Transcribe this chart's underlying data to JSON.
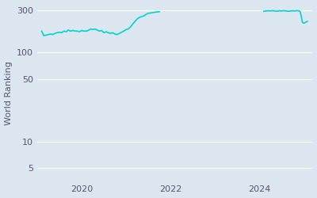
{
  "ylabel": "World Ranking",
  "line_color": "#00d4c8",
  "background_color": "#dce6f0",
  "fig_background": "#dce6f0",
  "segment1_x": [
    2019.1,
    2019.15,
    2019.2,
    2019.3,
    2019.35,
    2019.4,
    2019.45,
    2019.5,
    2019.55,
    2019.6,
    2019.65,
    2019.7,
    2019.75,
    2019.8,
    2019.85,
    2019.9,
    2019.95,
    2020.0,
    2020.05,
    2020.1,
    2020.15,
    2020.2,
    2020.25,
    2020.3,
    2020.35,
    2020.4,
    2020.45,
    2020.5,
    2020.55,
    2020.6,
    2020.65,
    2020.7,
    2020.75,
    2020.8,
    2020.85,
    2020.9,
    2020.95,
    2021.0,
    2021.05,
    2021.1,
    2021.15,
    2021.2,
    2021.25,
    2021.3,
    2021.35,
    2021.4,
    2021.45,
    2021.5,
    2021.55,
    2021.6,
    2021.65,
    2021.7,
    2021.75
  ],
  "segment1_y": [
    175,
    155,
    158,
    162,
    160,
    165,
    168,
    170,
    168,
    175,
    172,
    180,
    175,
    178,
    175,
    175,
    172,
    178,
    175,
    175,
    178,
    185,
    182,
    185,
    180,
    175,
    178,
    168,
    172,
    168,
    165,
    168,
    162,
    160,
    165,
    170,
    175,
    182,
    185,
    195,
    210,
    225,
    240,
    250,
    255,
    260,
    270,
    278,
    280,
    283,
    285,
    288,
    290
  ],
  "segment2_x": [
    2024.1,
    2024.15,
    2024.2,
    2024.25,
    2024.3,
    2024.35,
    2024.4,
    2024.45,
    2024.5,
    2024.55,
    2024.6,
    2024.65,
    2024.7,
    2024.75,
    2024.8,
    2024.85,
    2024.9,
    2024.92,
    2024.95,
    2024.97,
    2025.0,
    2025.03,
    2025.05,
    2025.08
  ],
  "segment2_y": [
    293,
    295,
    297,
    295,
    298,
    295,
    293,
    297,
    295,
    298,
    295,
    293,
    295,
    297,
    295,
    298,
    295,
    290,
    250,
    220,
    215,
    218,
    222,
    225
  ],
  "yticks": [
    5,
    10,
    50,
    100,
    300
  ],
  "xticks": [
    2020,
    2022,
    2024
  ],
  "xlim": [
    2019.0,
    2025.2
  ],
  "ylim_log": [
    3.5,
    350
  ]
}
